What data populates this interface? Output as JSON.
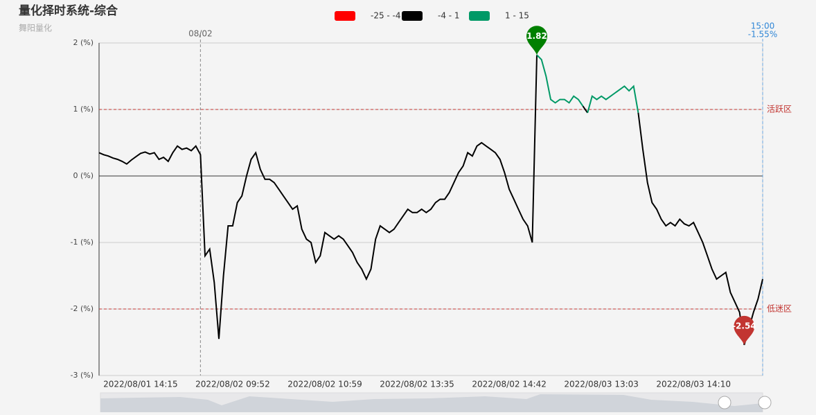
{
  "chart_data": {
    "type": "line",
    "title": "量化择时系统-综合",
    "subtitle": "舞阳量化",
    "categories": [
      null,
      null,
      null,
      null,
      null,
      null,
      null,
      null,
      null,
      "2022/08/01 14:15",
      null,
      null,
      null,
      null,
      null,
      null,
      null,
      null,
      null,
      null,
      null,
      null,
      null,
      null,
      null,
      null,
      null,
      null,
      null,
      "2022/08/02 09:52",
      null,
      null,
      null,
      null,
      null,
      null,
      null,
      null,
      null,
      null,
      null,
      null,
      null,
      null,
      null,
      null,
      null,
      null,
      null,
      "2022/08/02 10:59",
      null,
      null,
      null,
      null,
      null,
      null,
      null,
      null,
      null,
      null,
      null,
      null,
      null,
      null,
      null,
      null,
      null,
      null,
      null,
      "2022/08/02 13:35",
      null,
      null,
      null,
      null,
      null,
      null,
      null,
      null,
      null,
      null,
      null,
      null,
      null,
      null,
      null,
      null,
      null,
      null,
      null,
      "2022/08/02 14:42",
      null,
      null,
      null,
      null,
      null,
      null,
      null,
      null,
      null,
      null,
      null,
      null,
      null,
      null,
      null,
      null,
      null,
      null,
      null,
      "2022/08/03 13:03",
      null,
      null,
      null,
      null,
      null,
      null,
      null,
      null,
      null,
      null,
      null,
      null,
      null,
      null,
      null,
      null,
      null,
      null,
      null,
      "2022/08/03 14:10",
      null,
      null,
      null,
      null,
      null,
      null,
      null,
      null,
      null,
      null,
      null,
      null,
      null,
      null,
      null
    ],
    "series": [
      {
        "name": "综合",
        "values": [
          0.35,
          0.32,
          0.3,
          0.27,
          0.25,
          0.22,
          0.18,
          0.24,
          0.29,
          0.34,
          0.36,
          0.33,
          0.35,
          0.25,
          0.28,
          0.22,
          0.35,
          0.45,
          0.4,
          0.42,
          0.38,
          0.45,
          0.32,
          -1.2,
          -1.1,
          -1.6,
          -2.45,
          -1.5,
          -0.75,
          -0.75,
          -0.4,
          -0.3,
          0.0,
          0.25,
          0.35,
          0.1,
          -0.05,
          -0.05,
          -0.1,
          -0.2,
          -0.3,
          -0.4,
          -0.5,
          -0.45,
          -0.8,
          -0.95,
          -1.0,
          -1.3,
          -1.2,
          -0.85,
          -0.9,
          -0.95,
          -0.9,
          -0.95,
          -1.05,
          -1.15,
          -1.3,
          -1.4,
          -1.55,
          -1.4,
          -0.95,
          -0.75,
          -0.8,
          -0.85,
          -0.8,
          -0.7,
          -0.6,
          -0.5,
          -0.55,
          -0.55,
          -0.5,
          -0.55,
          -0.5,
          -0.4,
          -0.35,
          -0.35,
          -0.25,
          -0.1,
          0.05,
          0.15,
          0.35,
          0.3,
          0.45,
          0.5,
          0.45,
          0.4,
          0.35,
          0.25,
          0.05,
          -0.2,
          -0.35,
          -0.5,
          -0.65,
          -0.75,
          -1.0,
          1.82,
          1.75,
          1.5,
          1.15,
          1.1,
          1.15,
          1.15,
          1.1,
          1.2,
          1.15,
          1.05,
          0.95,
          1.2,
          1.15,
          1.2,
          1.15,
          1.2,
          1.25,
          1.3,
          1.35,
          1.28,
          1.35,
          0.95,
          0.4,
          -0.1,
          -0.4,
          -0.5,
          -0.65,
          -0.75,
          -0.7,
          -0.75,
          -0.65,
          -0.72,
          -0.75,
          -0.7,
          -0.85,
          -1.0,
          -1.2,
          -1.4,
          -1.55,
          -1.5,
          -1.45,
          -1.75,
          -1.9,
          -2.05,
          -2.54,
          -2.3,
          -2.05,
          -1.85,
          -1.55
        ]
      }
    ],
    "pieces": [
      {
        "min": -25,
        "max": -4,
        "label": "-25 - -4",
        "color": "#ff0000"
      },
      {
        "min": -4,
        "max": 1,
        "label": "-4 - 1",
        "color": "#000000"
      },
      {
        "min": 1,
        "max": 15,
        "label": "1 - 15",
        "color": "#009966"
      }
    ],
    "mark_lines": [
      {
        "value": 1,
        "label": "活跃区"
      },
      {
        "value": -2,
        "label": "低迷区"
      }
    ],
    "mark_line_color": "#c23531",
    "mark_point_colors": {
      "max": "#008000",
      "min": "#c23531"
    },
    "day_marker": {
      "index": 22,
      "label": "08/02"
    },
    "pointer": {
      "time": "15:00",
      "value_label": "-1.55%"
    },
    "ylim": [
      -3,
      2
    ],
    "yticks": [
      {
        "value": -3,
        "label": "-3 (%)"
      },
      {
        "value": -2,
        "label": "-2 (%)"
      },
      {
        "value": -1,
        "label": "-1 (%)"
      },
      {
        "value": 0,
        "label": "0 (%)"
      },
      {
        "value": 1,
        "label": "1 (%)"
      },
      {
        "value": 2,
        "label": "2 (%)"
      }
    ],
    "grid": true
  }
}
